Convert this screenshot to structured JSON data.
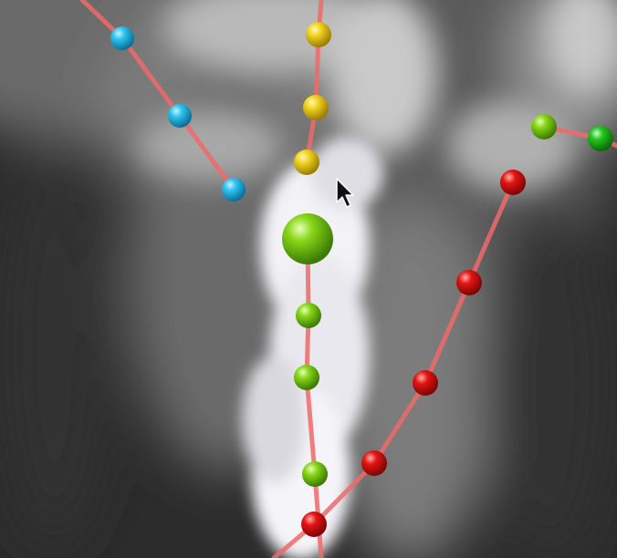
{
  "scene": {
    "background_colors": {
      "dark": "#2b2b2b",
      "mid": "#6e6e6e",
      "light": "#bfbfbf",
      "ridge_white": "#f6f6fb"
    },
    "path_color": "#f06a6a",
    "cursor_icon": "mouse-pointer-icon"
  },
  "tracks": [
    {
      "name": "cyan-track",
      "color": "#19b6e6"
    },
    {
      "name": "yellow-track",
      "color": "#f0d21e"
    },
    {
      "name": "red-track",
      "color": "#e01818"
    },
    {
      "name": "green-top-track",
      "color": "#7fd11a"
    },
    {
      "name": "green-center-track",
      "color": "#86d617"
    }
  ]
}
